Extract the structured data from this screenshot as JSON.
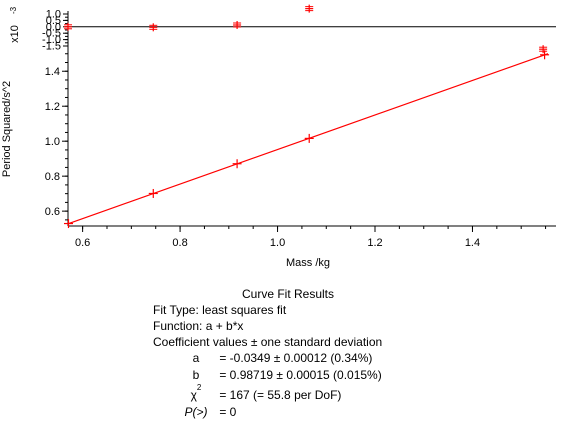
{
  "chart_data": [
    {
      "panel": "residuals",
      "type": "scatter",
      "ylabel": "x10",
      "ylabel_exponent": "-3",
      "yticks": [
        "1.0",
        "0.5",
        "0.0",
        "-0.5",
        "-1.0",
        "-1.5"
      ],
      "ylim": [
        -1.5,
        1.0
      ],
      "residual_points": [
        {
          "x": 0.57,
          "y": 0.0
        },
        {
          "x": 0.745,
          "y": -0.04
        },
        {
          "x": 0.917,
          "y": 0.14
        },
        {
          "x": 1.065,
          "y": 1.42
        },
        {
          "x": 1.545,
          "y": -1.75
        }
      ],
      "zero_line": 0.0
    },
    {
      "panel": "main",
      "type": "scatter",
      "xlabel": "Mass /kg",
      "ylabel": "Period Squared/s^2",
      "xlim": [
        0.57,
        1.555
      ],
      "ylim": [
        0.515,
        1.51
      ],
      "xticks": [
        "0.6",
        "0.8",
        "1.0",
        "1.2",
        "1.4"
      ],
      "yticks": [
        "0.6",
        "0.8",
        "1.0",
        "1.2",
        "1.4"
      ],
      "points": [
        {
          "x": 0.571,
          "y": 0.529
        },
        {
          "x": 0.745,
          "y": 0.701
        },
        {
          "x": 0.917,
          "y": 0.871
        },
        {
          "x": 1.065,
          "y": 1.016
        },
        {
          "x": 1.548,
          "y": 1.494
        }
      ],
      "fit_line": {
        "a": -0.0349,
        "b": 0.98719,
        "x_range": [
          0.57,
          1.555
        ]
      },
      "colors": {
        "data": "#ff0000",
        "fit": "#ff0000",
        "axes": "#000000"
      }
    }
  ],
  "fit_results": {
    "title": "Curve Fit Results",
    "fit_type": "Fit Type: least squares fit",
    "function": "Function: a + b*x",
    "coeff_header": "Coefficient values ± one standard deviation",
    "rows": [
      {
        "sym": "a",
        "val": "= -0.0349 ± 0.00012  (0.34%)"
      },
      {
        "sym": "b",
        "val": "= 0.98719 ± 0.00015  (0.015%)"
      },
      {
        "sym": "χ",
        "sup": "2",
        "val": "= 167 (= 55.8 per DoF)"
      },
      {
        "sym": "P(>)",
        "val": "= 0"
      }
    ]
  }
}
